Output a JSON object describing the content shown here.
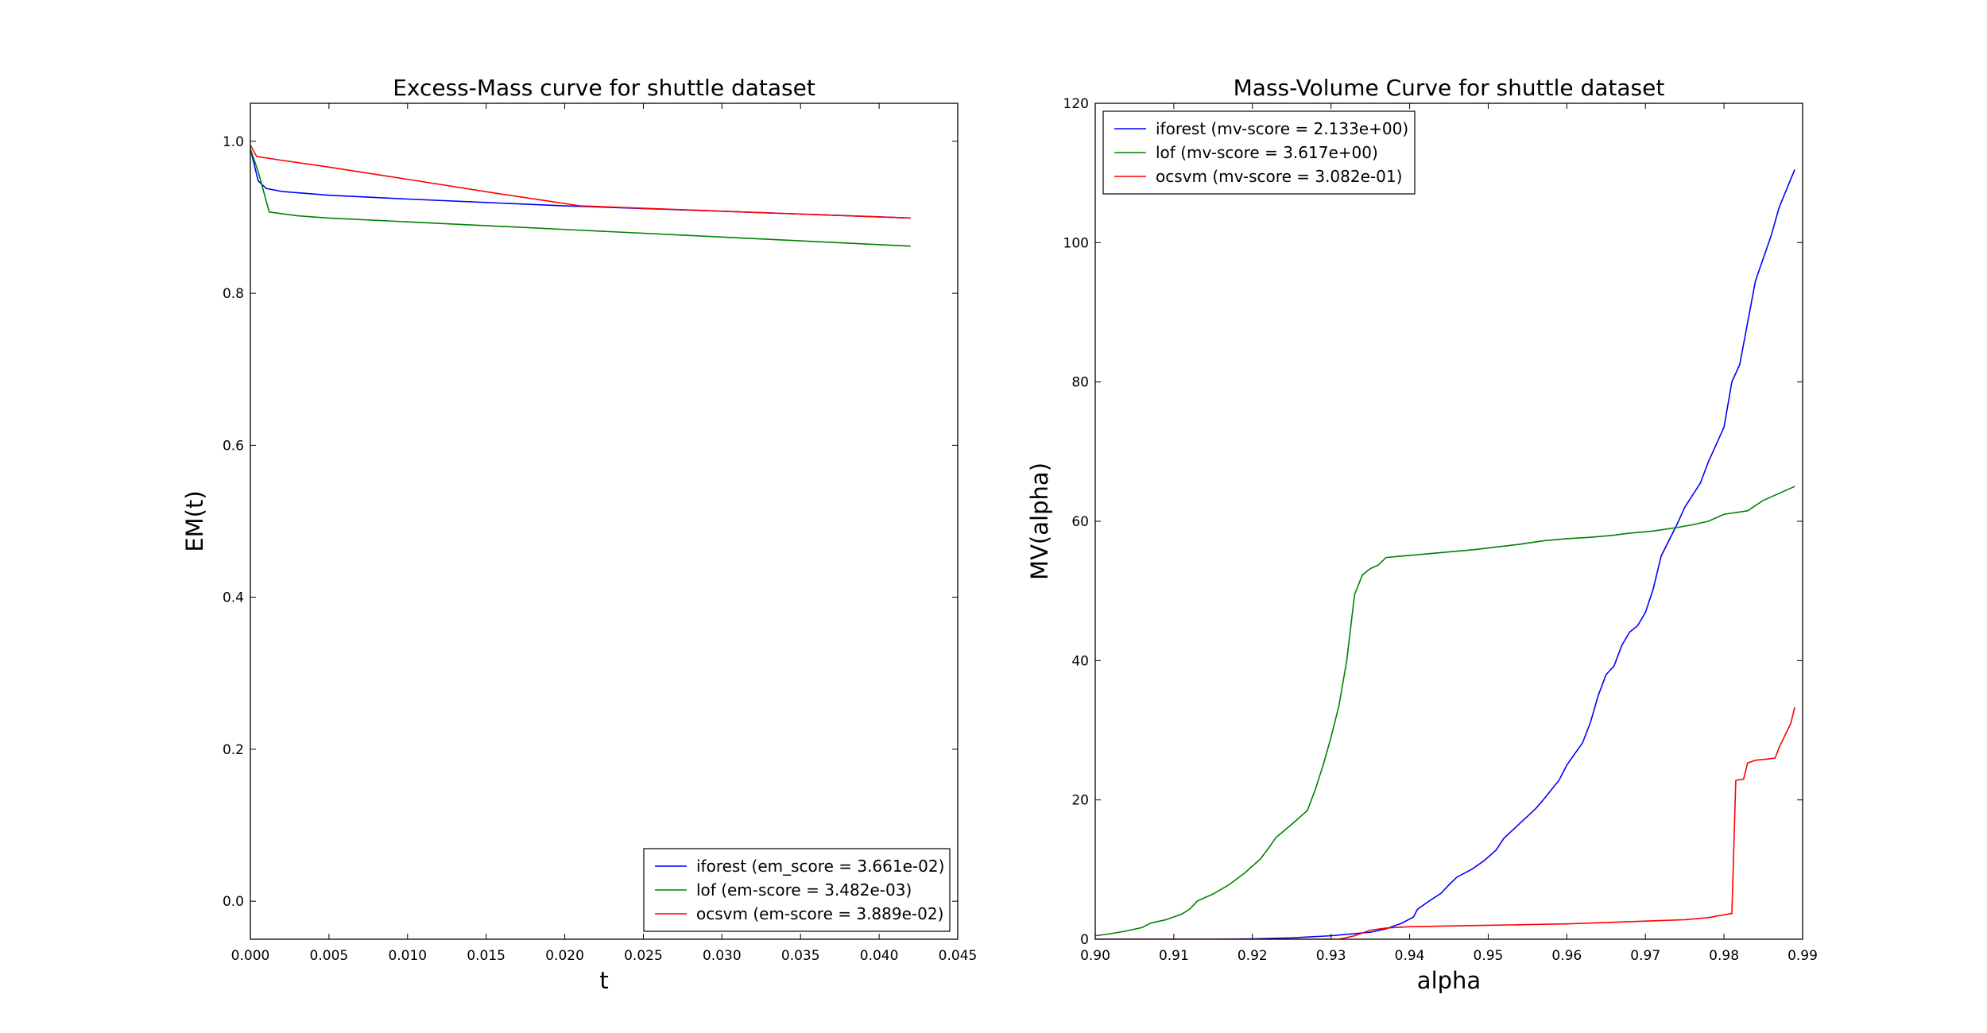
{
  "chart_data": [
    {
      "type": "line",
      "title": "Excess-Mass curve for shuttle dataset",
      "xlabel": "t",
      "ylabel": "EM(t)",
      "xlim": [
        0.0,
        0.045
      ],
      "ylim": [
        -0.05,
        1.05
      ],
      "xticks": [
        "0.000",
        "0.005",
        "0.010",
        "0.015",
        "0.020",
        "0.025",
        "0.030",
        "0.035",
        "0.040",
        "0.045"
      ],
      "xtick_values": [
        0.0,
        0.005,
        0.01,
        0.015,
        0.02,
        0.025,
        0.03,
        0.035,
        0.04,
        0.045
      ],
      "yticks": [
        "0.0",
        "0.2",
        "0.4",
        "0.6",
        "0.8",
        "1.0"
      ],
      "ytick_values": [
        0.0,
        0.2,
        0.4,
        0.6,
        0.8,
        1.0
      ],
      "grid": false,
      "legend_position": "bottom-right",
      "series": [
        {
          "name": "iforest (em_score = 3.661e-02)",
          "color": "#0000ff",
          "points": [
            [
              0.0,
              0.99
            ],
            [
              0.0005,
              0.948
            ],
            [
              0.001,
              0.938
            ],
            [
              0.002,
              0.934
            ],
            [
              0.005,
              0.929
            ],
            [
              0.01,
              0.924
            ],
            [
              0.02,
              0.915
            ],
            [
              0.03,
              0.908
            ],
            [
              0.042,
              0.899
            ]
          ]
        },
        {
          "name": "lof (em-score = 3.482e-03)",
          "color": "#008000",
          "points": [
            [
              0.0,
              0.99
            ],
            [
              0.0005,
              0.96
            ],
            [
              0.0012,
              0.907
            ],
            [
              0.003,
              0.902
            ],
            [
              0.005,
              0.899
            ],
            [
              0.01,
              0.894
            ],
            [
              0.02,
              0.884
            ],
            [
              0.03,
              0.874
            ],
            [
              0.042,
              0.862
            ]
          ]
        },
        {
          "name": "ocsvm (em-score = 3.889e-02)",
          "color": "#ff0000",
          "points": [
            [
              0.0,
              0.995
            ],
            [
              0.0004,
              0.98
            ],
            [
              0.002,
              0.975
            ],
            [
              0.005,
              0.966
            ],
            [
              0.01,
              0.95
            ],
            [
              0.0155,
              0.932
            ],
            [
              0.021,
              0.915
            ],
            [
              0.03,
              0.908
            ],
            [
              0.042,
              0.899
            ]
          ]
        }
      ]
    },
    {
      "type": "line",
      "title": "Mass-Volume Curve for shuttle dataset",
      "xlabel": "alpha",
      "ylabel": "MV(alpha)",
      "xlim": [
        0.9,
        0.99
      ],
      "ylim": [
        0,
        120
      ],
      "xticks": [
        "0.90",
        "0.91",
        "0.92",
        "0.93",
        "0.94",
        "0.95",
        "0.96",
        "0.97",
        "0.98",
        "0.99"
      ],
      "xtick_values": [
        0.9,
        0.91,
        0.92,
        0.93,
        0.94,
        0.95,
        0.96,
        0.97,
        0.98,
        0.99
      ],
      "yticks": [
        "0",
        "20",
        "40",
        "60",
        "80",
        "100",
        "120"
      ],
      "ytick_values": [
        0,
        20,
        40,
        60,
        80,
        100,
        120
      ],
      "grid": false,
      "legend_position": "top-left",
      "series": [
        {
          "name": "iforest (mv-score = 2.133e+00)",
          "color": "#0000ff",
          "points": [
            [
              0.9,
              0.0
            ],
            [
              0.915,
              0.0
            ],
            [
              0.92,
              0.05
            ],
            [
              0.925,
              0.2
            ],
            [
              0.93,
              0.5
            ],
            [
              0.935,
              1.0
            ],
            [
              0.937,
              1.5
            ],
            [
              0.939,
              2.3
            ],
            [
              0.9405,
              3.2
            ],
            [
              0.941,
              4.3
            ],
            [
              0.9425,
              5.5
            ],
            [
              0.944,
              6.6
            ],
            [
              0.945,
              7.8
            ],
            [
              0.946,
              8.9
            ],
            [
              0.948,
              10.1
            ],
            [
              0.9495,
              11.3
            ],
            [
              0.951,
              12.8
            ],
            [
              0.952,
              14.5
            ],
            [
              0.954,
              16.6
            ],
            [
              0.956,
              18.7
            ],
            [
              0.957,
              20.0
            ],
            [
              0.959,
              22.8
            ],
            [
              0.96,
              25.0
            ],
            [
              0.962,
              28.2
            ],
            [
              0.963,
              31.1
            ],
            [
              0.964,
              35.0
            ],
            [
              0.965,
              38.0
            ],
            [
              0.966,
              39.2
            ],
            [
              0.967,
              42.2
            ],
            [
              0.968,
              44.1
            ],
            [
              0.969,
              45.0
            ],
            [
              0.97,
              46.9
            ],
            [
              0.971,
              50.3
            ],
            [
              0.972,
              55.0
            ],
            [
              0.974,
              59.5
            ],
            [
              0.975,
              62.0
            ],
            [
              0.977,
              65.5
            ],
            [
              0.978,
              68.5
            ],
            [
              0.979,
              71.0
            ],
            [
              0.98,
              73.5
            ],
            [
              0.981,
              80.0
            ],
            [
              0.982,
              82.5
            ],
            [
              0.984,
              94.5
            ],
            [
              0.986,
              101.0
            ],
            [
              0.987,
              105.0
            ],
            [
              0.989,
              110.5
            ]
          ]
        },
        {
          "name": "lof (mv-score = 3.617e+00)",
          "color": "#008000",
          "points": [
            [
              0.9,
              0.5
            ],
            [
              0.902,
              0.8
            ],
            [
              0.904,
              1.2
            ],
            [
              0.906,
              1.7
            ],
            [
              0.907,
              2.3
            ],
            [
              0.909,
              2.8
            ],
            [
              0.911,
              3.6
            ],
            [
              0.912,
              4.3
            ],
            [
              0.913,
              5.5
            ],
            [
              0.915,
              6.5
            ],
            [
              0.917,
              7.8
            ],
            [
              0.919,
              9.5
            ],
            [
              0.921,
              11.5
            ],
            [
              0.922,
              13.0
            ],
            [
              0.923,
              14.6
            ],
            [
              0.925,
              16.5
            ],
            [
              0.927,
              18.5
            ],
            [
              0.928,
              21.5
            ],
            [
              0.929,
              25.0
            ],
            [
              0.93,
              29.0
            ],
            [
              0.931,
              33.5
            ],
            [
              0.932,
              40.0
            ],
            [
              0.933,
              49.5
            ],
            [
              0.934,
              52.3
            ],
            [
              0.935,
              53.2
            ],
            [
              0.936,
              53.7
            ],
            [
              0.937,
              54.8
            ],
            [
              0.939,
              55.0
            ],
            [
              0.942,
              55.3
            ],
            [
              0.945,
              55.6
            ],
            [
              0.948,
              55.9
            ],
            [
              0.951,
              56.3
            ],
            [
              0.954,
              56.7
            ],
            [
              0.957,
              57.2
            ],
            [
              0.96,
              57.5
            ],
            [
              0.963,
              57.7
            ],
            [
              0.966,
              58.0
            ],
            [
              0.968,
              58.3
            ],
            [
              0.971,
              58.6
            ],
            [
              0.974,
              59.1
            ],
            [
              0.976,
              59.5
            ],
            [
              0.978,
              60.0
            ],
            [
              0.98,
              61.0
            ],
            [
              0.983,
              61.5
            ],
            [
              0.985,
              63.0
            ],
            [
              0.987,
              64.0
            ],
            [
              0.989,
              65.0
            ]
          ]
        },
        {
          "name": "ocsvm (mv-score = 3.082e-01)",
          "color": "#ff0000",
          "points": [
            [
              0.9,
              0.0
            ],
            [
              0.931,
              0.0
            ],
            [
              0.933,
              0.5
            ],
            [
              0.935,
              1.3
            ],
            [
              0.937,
              1.6
            ],
            [
              0.94,
              1.8
            ],
            [
              0.945,
              1.9
            ],
            [
              0.95,
              2.0
            ],
            [
              0.955,
              2.1
            ],
            [
              0.96,
              2.2
            ],
            [
              0.965,
              2.4
            ],
            [
              0.97,
              2.6
            ],
            [
              0.975,
              2.8
            ],
            [
              0.978,
              3.1
            ],
            [
              0.9805,
              3.6
            ],
            [
              0.981,
              3.7
            ],
            [
              0.9815,
              22.8
            ],
            [
              0.9825,
              23.0
            ],
            [
              0.983,
              25.3
            ],
            [
              0.984,
              25.7
            ],
            [
              0.985,
              25.8
            ],
            [
              0.9865,
              26.0
            ],
            [
              0.987,
              27.5
            ],
            [
              0.9885,
              31.0
            ],
            [
              0.989,
              33.3
            ]
          ]
        }
      ]
    }
  ]
}
